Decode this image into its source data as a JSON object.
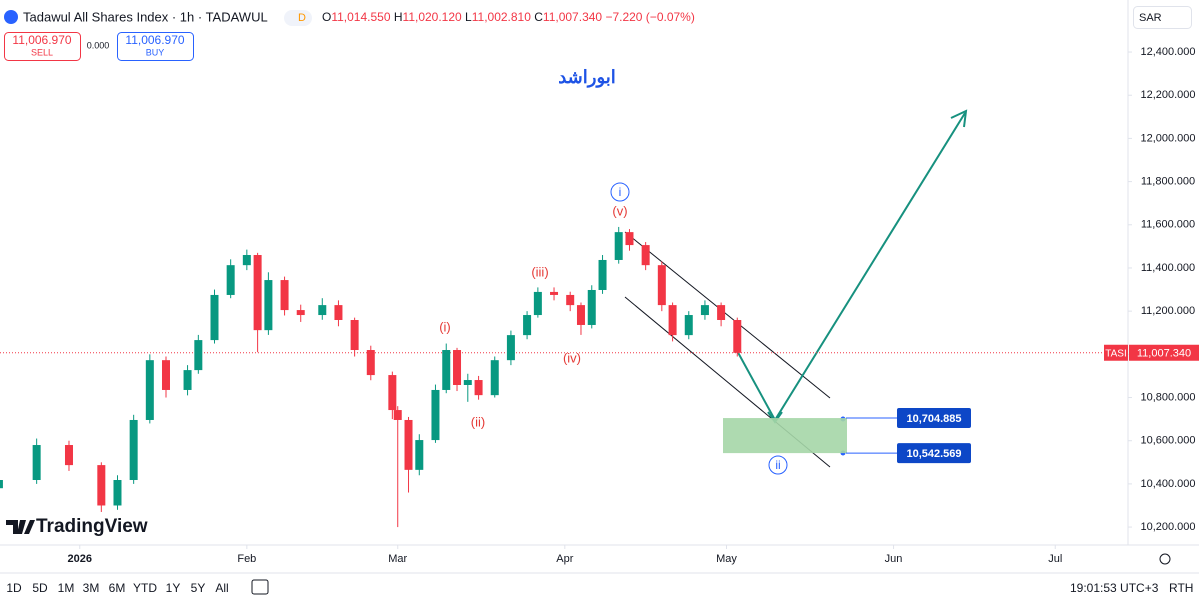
{
  "header": {
    "title": "Tadawul All Shares Index · 1h · TADAWUL",
    "badge": "D",
    "ohlc": [
      {
        "key": "O",
        "text": "11,014.550"
      },
      {
        "key": "H",
        "text": "11,020.120"
      },
      {
        "key": "L",
        "text": "11,002.810"
      },
      {
        "key": "C",
        "text": "11,007.340"
      }
    ],
    "change": "−7.220 (−0.07%)",
    "sell": {
      "price": "11,006.970",
      "label": "SELL"
    },
    "spread": "0.000",
    "buy": {
      "price": "11,006.970",
      "label": "BUY"
    },
    "currency": "SAR"
  },
  "chart_data": {
    "type": "candlestick",
    "watermark": "TradingView",
    "x": [
      -15,
      -8,
      -2,
      4,
      7,
      10,
      13,
      16,
      20,
      22,
      25,
      28,
      31,
      33,
      35,
      38,
      41,
      45,
      48,
      51,
      54,
      58,
      59,
      61,
      63,
      66,
      68,
      70,
      72,
      74,
      77,
      80,
      83,
      85,
      88,
      91,
      93,
      95,
      97,
      100,
      102,
      105,
      108,
      110,
      113,
      116,
      119,
      122
    ],
    "open": [
      10380,
      10418,
      10580,
      10487,
      10300,
      10418,
      10696,
      10973,
      10835,
      10927,
      11066,
      11275,
      11413,
      11460,
      11112,
      11344,
      11205,
      11182,
      11228,
      11159,
      11020,
      10904,
      10742,
      10696,
      10465,
      10603,
      10835,
      11020,
      10858,
      10881,
      10811,
      10973,
      11089,
      11182,
      11289,
      11275,
      11228,
      11136,
      11298,
      11437,
      11566,
      11506,
      11413,
      11228,
      11089,
      11182,
      11228,
      11159
    ],
    "high": [
      10450,
      10610,
      10600,
      10500,
      10440,
      10720,
      11000,
      10990,
      10950,
      11090,
      11300,
      11440,
      11485,
      11470,
      11380,
      11360,
      11230,
      11260,
      11250,
      11170,
      11040,
      10920,
      10760,
      10710,
      10630,
      10860,
      11050,
      11030,
      10910,
      10900,
      10990,
      11110,
      11200,
      11310,
      11310,
      11290,
      11240,
      11320,
      11460,
      11590,
      11580,
      11520,
      11430,
      11240,
      11200,
      11250,
      11240,
      11170
    ],
    "low": [
      10350,
      10400,
      10460,
      10270,
      10280,
      10400,
      10680,
      10800,
      10810,
      10910,
      11050,
      11260,
      11390,
      11010,
      11090,
      11180,
      11150,
      11160,
      11130,
      10990,
      10880,
      10700,
      10200,
      10360,
      10440,
      10590,
      10820,
      10830,
      10780,
      10790,
      10800,
      10950,
      11070,
      11170,
      11250,
      11200,
      11090,
      11120,
      11280,
      11420,
      11480,
      11390,
      11200,
      11060,
      11070,
      11160,
      11130,
      10990
    ],
    "close": [
      10418,
      10580,
      10487,
      10300,
      10418,
      10696,
      10973,
      10835,
      10927,
      11066,
      11275,
      11413,
      11460,
      11112,
      11344,
      11205,
      11182,
      11228,
      11159,
      11020,
      10904,
      10742,
      10696,
      10465,
      10603,
      10835,
      11020,
      10858,
      10881,
      10811,
      10973,
      11089,
      11182,
      11289,
      11275,
      11228,
      11136,
      11298,
      11437,
      11566,
      11506,
      11413,
      11228,
      11089,
      11182,
      11228,
      11159,
      11007
    ],
    "up_color": "#089981",
    "down_color": "#f23645",
    "xlim": [
      -14.8,
      194.5
    ],
    "ylim": [
      10117,
      12641
    ],
    "xticks": [
      {
        "value": 0,
        "label": "2026"
      },
      {
        "value": 31,
        "label": "Feb"
      },
      {
        "value": 59,
        "label": "Mar"
      },
      {
        "value": 90,
        "label": "Apr"
      },
      {
        "value": 120,
        "label": "May"
      },
      {
        "value": 151,
        "label": "Jun"
      },
      {
        "value": 181,
        "label": "Jul"
      }
    ],
    "yticks": [
      {
        "value": 10200,
        "label": "10,200.000"
      },
      {
        "value": 10400,
        "label": "10,400.000"
      },
      {
        "value": 10600,
        "label": "10,600.000"
      },
      {
        "value": 10800,
        "label": "10,800.000"
      },
      {
        "value": 11000,
        "label": "11,000.000"
      },
      {
        "value": 11200,
        "label": "11,200.000"
      },
      {
        "value": 11400,
        "label": "11,400.000"
      },
      {
        "value": 11600,
        "label": "11,600.000"
      },
      {
        "value": 11800,
        "label": "11,800.000"
      },
      {
        "value": 12000,
        "label": "12,000.000"
      },
      {
        "value": 12200,
        "label": "12,200.000"
      },
      {
        "value": 12400,
        "label": "12,400.000"
      }
    ],
    "last_price": {
      "symbol": "TASI",
      "value": 11007.34,
      "label": "11,007.340"
    },
    "price_levels": [
      {
        "value": 10704.885,
        "label": "10,704.885"
      },
      {
        "value": 10542.569,
        "label": "10,542.569"
      }
    ],
    "annotation_title": "ابوراشد",
    "wave_labels": [
      "(i)",
      "(ii)",
      "(iii)",
      "(iv)",
      "(v)"
    ],
    "circle_labels": [
      "i",
      "ii"
    ]
  },
  "toolbar": {
    "ranges": [
      "1D",
      "5D",
      "1M",
      "3M",
      "6M",
      "YTD",
      "1Y",
      "5Y",
      "All"
    ],
    "clock": "19:01:53 UTC+3",
    "session": "RTH"
  }
}
